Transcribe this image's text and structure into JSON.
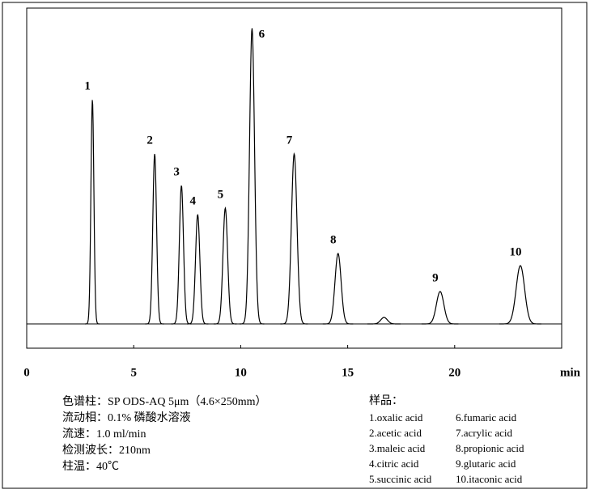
{
  "chart_data": {
    "type": "chromatogram",
    "x_label": "min",
    "xlim": [
      0,
      25
    ],
    "xticks": [
      0,
      5,
      10,
      15,
      20
    ],
    "color": "#000000",
    "peaks": [
      {
        "label": "1",
        "time": 3.07,
        "height": 277
      },
      {
        "label": "2",
        "time": 5.98,
        "height": 210
      },
      {
        "label": "3",
        "time": 7.23,
        "height": 171
      },
      {
        "label": "4",
        "time": 7.99,
        "height": 135
      },
      {
        "label": "5",
        "time": 9.28,
        "height": 143
      },
      {
        "label": "6",
        "time": 10.53,
        "height": 365
      },
      {
        "label": "7",
        "time": 12.5,
        "height": 210
      },
      {
        "label": "8",
        "time": 14.55,
        "height": 87
      },
      {
        "label": null,
        "time": 16.7,
        "height": 8
      },
      {
        "label": "9",
        "time": 19.32,
        "height": 40
      },
      {
        "label": "10",
        "time": 23.07,
        "height": 72
      }
    ]
  },
  "conditions": [
    "色谱柱：SP ODS-AQ 5μm（4.6×250mm）",
    "流动相：0.1% 磷酸水溶液",
    "流速：1.0 ml/min",
    "检测波长：210nm",
    "柱温：40℃"
  ],
  "sample": {
    "title": "样品：",
    "items": [
      "1.oxalic acid",
      "2.acetic acid",
      "3.maleic acid",
      "4.citric acid",
      "5.succinic acid",
      "6.fumaric acid",
      "7.acrylic acid",
      "8.propionic acid",
      "9.glutaric acid",
      "10.itaconic acid"
    ]
  }
}
